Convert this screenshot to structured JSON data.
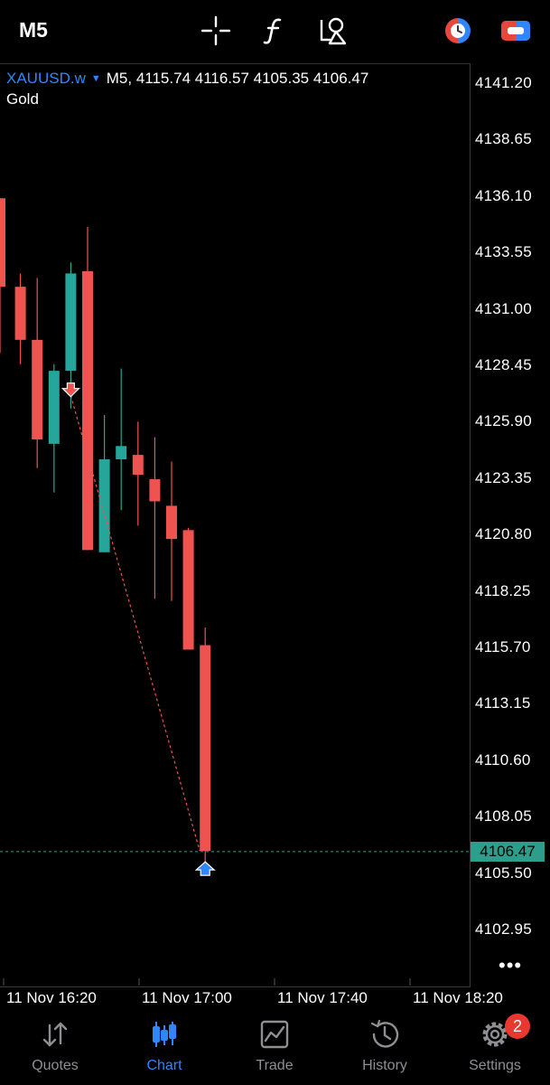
{
  "toolbar": {
    "timeframe": "M5",
    "icons": [
      "crosshair-icon",
      "indicators-icon",
      "objects-icon",
      "one-click-trading-icon",
      "connection-icon"
    ]
  },
  "chart": {
    "symbol": "XAUUSD.w",
    "timeframe": "M5",
    "ohlc": "4115.74 4116.57 4105.35 4106.47",
    "description": "Gold",
    "current_price": "4106.47",
    "bull_color": "#26a69a",
    "bear_color": "#ef5350"
  },
  "chart_data": {
    "type": "candlestick",
    "price_labels": [
      "4141.20",
      "4138.65",
      "4136.10",
      "4133.55",
      "4131.00",
      "4128.45",
      "4125.90",
      "4123.35",
      "4120.80",
      "4118.25",
      "4115.70",
      "4113.15",
      "4110.60",
      "4108.05",
      "4105.50",
      "4102.95"
    ],
    "time_labels": [
      "11 Nov 16:20",
      "11 Nov 17:00",
      "11 Nov 17:40",
      "11 Nov 18:20"
    ],
    "candles": [
      {
        "o": 4136.0,
        "h": 4136.0,
        "l": 4129.0,
        "c": 4132.0
      },
      {
        "o": 4132.0,
        "h": 4132.6,
        "l": 4128.5,
        "c": 4129.6
      },
      {
        "o": 4129.6,
        "h": 4132.4,
        "l": 4123.8,
        "c": 4125.1
      },
      {
        "o": 4124.9,
        "h": 4128.5,
        "l": 4122.7,
        "c": 4128.2
      },
      {
        "o": 4128.2,
        "h": 4133.1,
        "l": 4126.5,
        "c": 4132.6
      },
      {
        "o": 4132.7,
        "h": 4134.7,
        "l": 4120.1,
        "c": 4120.1
      },
      {
        "o": 4120.0,
        "h": 4126.2,
        "l": 4120.0,
        "c": 4124.2
      },
      {
        "o": 4124.2,
        "h": 4128.3,
        "l": 4121.9,
        "c": 4124.8
      },
      {
        "o": 4124.4,
        "h": 4125.9,
        "l": 4121.2,
        "c": 4123.5
      },
      {
        "o": 4123.3,
        "h": 4125.2,
        "l": 4117.9,
        "c": 4122.3
      },
      {
        "o": 4122.1,
        "h": 4124.1,
        "l": 4117.8,
        "c": 4120.6
      },
      {
        "o": 4121.0,
        "h": 4121.1,
        "l": 4115.6,
        "c": 4115.6
      },
      {
        "o": 4115.8,
        "h": 4116.6,
        "l": 4105.4,
        "c": 4106.5
      }
    ],
    "trade": {
      "sell_at": 4127.4,
      "buy_at": 4106.5
    }
  },
  "tabs": [
    {
      "label": "Quotes",
      "icon": "quotes-icon"
    },
    {
      "label": "Chart",
      "icon": "chart-icon"
    },
    {
      "label": "Trade",
      "icon": "trade-icon"
    },
    {
      "label": "History",
      "icon": "history-icon"
    },
    {
      "label": "Settings",
      "icon": "settings-icon"
    }
  ],
  "settings_badge": "2",
  "more_label": "•••"
}
